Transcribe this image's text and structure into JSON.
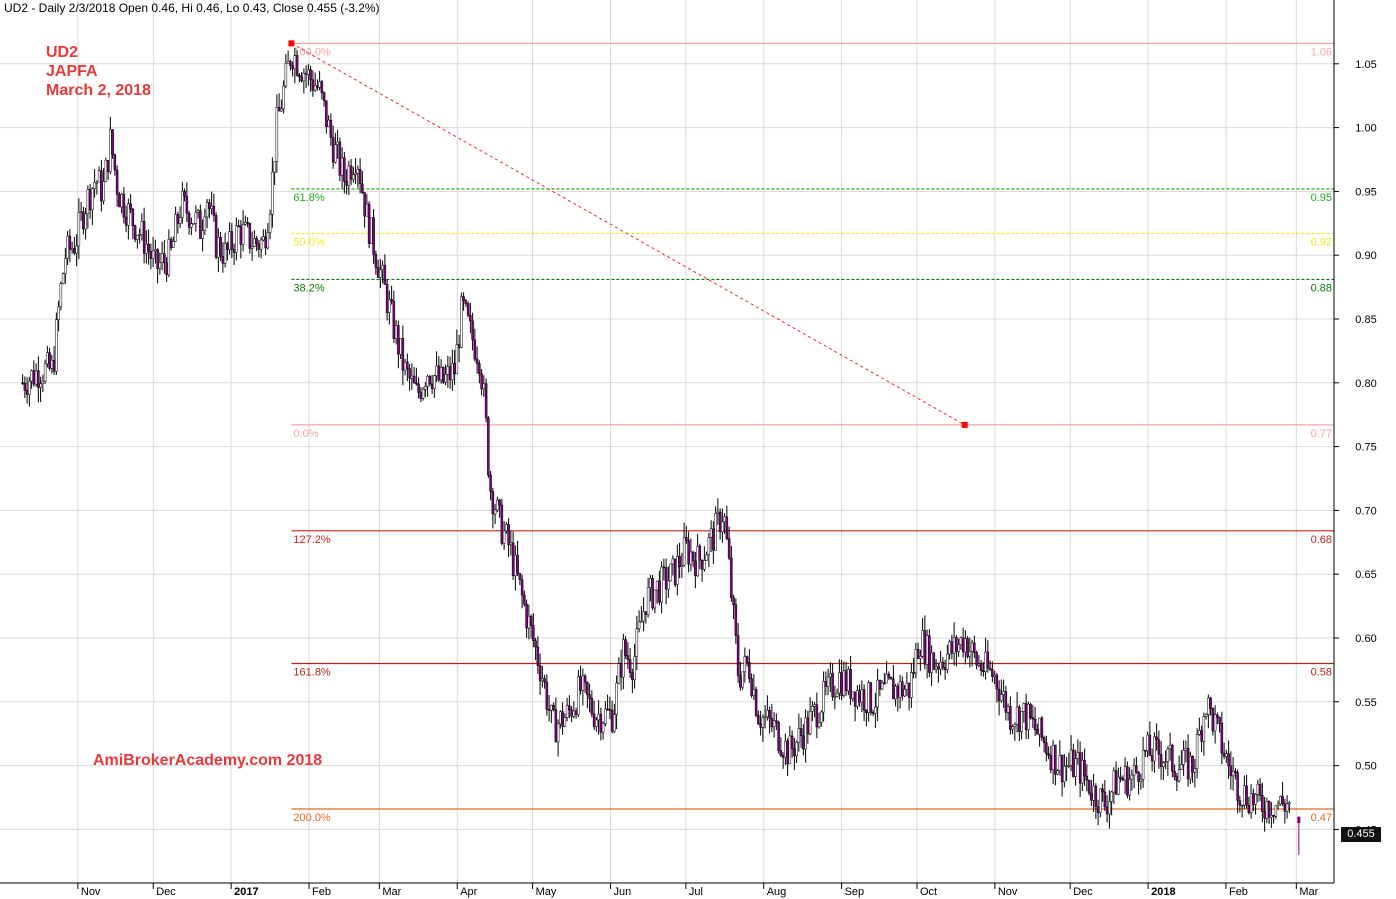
{
  "header": {
    "title": "UD2 - Daily 2/3/2018 Open 0.46, Hi 0.46, Lo 0.43, Close 0.455 (-3.2%)"
  },
  "annotations": {
    "ticker": "UD2",
    "company": "JAPFA",
    "date": "March 2, 2018",
    "brand": "AmiBrokerAcademy.com 2018"
  },
  "last_price_label": "0.455",
  "chart_data": {
    "type": "candlestick",
    "ylim": [
      0.408,
      1.1
    ],
    "y_ticks": [
      0.45,
      0.5,
      0.55,
      0.6,
      0.65,
      0.7,
      0.75,
      0.8,
      0.85,
      0.9,
      0.95,
      1.0,
      1.05
    ],
    "y_tick_labels": [
      "0.45",
      "0.50",
      "0.55",
      "0.60",
      "0.65",
      "0.70",
      "0.75",
      "0.80",
      "0.85",
      "0.90",
      "0.95",
      "1.00",
      "1.05"
    ],
    "x_axis_labels": [
      {
        "label": "Nov",
        "date": "2016-11-01"
      },
      {
        "label": "Dec",
        "date": "2016-12-01"
      },
      {
        "label": "2017",
        "date": "2017-01-01",
        "bold": true
      },
      {
        "label": "Feb",
        "date": "2017-02-01"
      },
      {
        "label": "Mar",
        "date": "2017-03-01"
      },
      {
        "label": "Apr",
        "date": "2017-04-01"
      },
      {
        "label": "May",
        "date": "2017-05-01"
      },
      {
        "label": "Jun",
        "date": "2017-06-01"
      },
      {
        "label": "Jul",
        "date": "2017-07-01"
      },
      {
        "label": "Aug",
        "date": "2017-08-01"
      },
      {
        "label": "Sep",
        "date": "2017-09-01"
      },
      {
        "label": "Oct",
        "date": "2017-10-01"
      },
      {
        "label": "Nov",
        "date": "2017-11-01"
      },
      {
        "label": "Dec",
        "date": "2017-12-01"
      },
      {
        "label": "2018",
        "date": "2018-01-01",
        "bold": true
      },
      {
        "label": "Feb",
        "date": "2018-02-01"
      },
      {
        "label": "Mar",
        "date": "2018-03-01"
      }
    ],
    "fibonacci": {
      "levels": [
        {
          "pct": "100.0%",
          "value": 1.066,
          "right": "1.06",
          "color": "#f4a6a6"
        },
        {
          "pct": "61.8%",
          "value": 0.952,
          "right": "0.95",
          "color": "#1faa1f",
          "dashed": true
        },
        {
          "pct": "50.0%",
          "value": 0.917,
          "right": "0.92",
          "color": "#eeee22",
          "dashed": true
        },
        {
          "pct": "38.2%",
          "value": 0.881,
          "right": "0.88",
          "color": "#0a7a0a",
          "dashed": true
        },
        {
          "pct": "0.0%",
          "value": 0.767,
          "right": "0.77",
          "color": "#f4a6a6"
        },
        {
          "pct": "127.2%",
          "value": 0.684,
          "right": "0.68",
          "color": "#cc2222"
        },
        {
          "pct": "161.8%",
          "value": 0.58,
          "right": "0.58",
          "color": "#a82a1a"
        },
        {
          "pct": "200.0%",
          "value": 0.466,
          "right": "0.47",
          "color": "#e06a20"
        }
      ],
      "trendline": {
        "from": {
          "date": "2017-01-25",
          "price": 1.066
        },
        "to": {
          "date": "2017-10-20",
          "price": 0.767
        },
        "color": "#e03030"
      }
    },
    "series_path": [
      {
        "date": "2016-10-10",
        "price": 0.8
      },
      {
        "date": "2016-10-17",
        "price": 0.81
      },
      {
        "date": "2016-10-22",
        "price": 0.81
      },
      {
        "date": "2016-10-25",
        "price": 0.87
      },
      {
        "date": "2016-10-27",
        "price": 0.9
      },
      {
        "date": "2016-10-31",
        "price": 0.91
      },
      {
        "date": "2016-11-04",
        "price": 0.94
      },
      {
        "date": "2016-11-08",
        "price": 0.96
      },
      {
        "date": "2016-11-11",
        "price": 0.95
      },
      {
        "date": "2016-11-14",
        "price": 0.99
      },
      {
        "date": "2016-11-17",
        "price": 0.95
      },
      {
        "date": "2016-11-22",
        "price": 0.93
      },
      {
        "date": "2016-11-28",
        "price": 0.91
      },
      {
        "date": "2016-12-02",
        "price": 0.89
      },
      {
        "date": "2016-12-08",
        "price": 0.9
      },
      {
        "date": "2016-12-12",
        "price": 0.94
      },
      {
        "date": "2016-12-17",
        "price": 0.93
      },
      {
        "date": "2016-12-20",
        "price": 0.92
      },
      {
        "date": "2016-12-22",
        "price": 0.95
      },
      {
        "date": "2016-12-26",
        "price": 0.91
      },
      {
        "date": "2016-12-30",
        "price": 0.9
      },
      {
        "date": "2017-01-04",
        "price": 0.92
      },
      {
        "date": "2017-01-10",
        "price": 0.91
      },
      {
        "date": "2017-01-14",
        "price": 0.91
      },
      {
        "date": "2017-01-17",
        "price": 0.95
      },
      {
        "date": "2017-01-19",
        "price": 1.0
      },
      {
        "date": "2017-01-22",
        "price": 1.03
      },
      {
        "date": "2017-01-25",
        "price": 1.06
      },
      {
        "date": "2017-01-28",
        "price": 1.05
      },
      {
        "date": "2017-02-01",
        "price": 1.04
      },
      {
        "date": "2017-02-05",
        "price": 1.03
      },
      {
        "date": "2017-02-10",
        "price": 0.99
      },
      {
        "date": "2017-02-15",
        "price": 0.96
      },
      {
        "date": "2017-02-20",
        "price": 0.98
      },
      {
        "date": "2017-02-24",
        "price": 0.93
      },
      {
        "date": "2017-03-01",
        "price": 0.89
      },
      {
        "date": "2017-03-06",
        "price": 0.85
      },
      {
        "date": "2017-03-11",
        "price": 0.81
      },
      {
        "date": "2017-03-16",
        "price": 0.79
      },
      {
        "date": "2017-03-20",
        "price": 0.81
      },
      {
        "date": "2017-03-26",
        "price": 0.8
      },
      {
        "date": "2017-03-31",
        "price": 0.81
      },
      {
        "date": "2017-04-03",
        "price": 0.86
      },
      {
        "date": "2017-04-06",
        "price": 0.84
      },
      {
        "date": "2017-04-10",
        "price": 0.82
      },
      {
        "date": "2017-04-12",
        "price": 0.78
      },
      {
        "date": "2017-04-14",
        "price": 0.72
      },
      {
        "date": "2017-04-18",
        "price": 0.69
      },
      {
        "date": "2017-04-22",
        "price": 0.67
      },
      {
        "date": "2017-04-27",
        "price": 0.63
      },
      {
        "date": "2017-05-01",
        "price": 0.6
      },
      {
        "date": "2017-05-05",
        "price": 0.57
      },
      {
        "date": "2017-05-09",
        "price": 0.53
      },
      {
        "date": "2017-05-15",
        "price": 0.54
      },
      {
        "date": "2017-05-20",
        "price": 0.56
      },
      {
        "date": "2017-05-26",
        "price": 0.54
      },
      {
        "date": "2017-06-02",
        "price": 0.54
      },
      {
        "date": "2017-06-06",
        "price": 0.59
      },
      {
        "date": "2017-06-10",
        "price": 0.58
      },
      {
        "date": "2017-06-15",
        "price": 0.63
      },
      {
        "date": "2017-06-20",
        "price": 0.64
      },
      {
        "date": "2017-06-26",
        "price": 0.65
      },
      {
        "date": "2017-07-01",
        "price": 0.67
      },
      {
        "date": "2017-07-06",
        "price": 0.66
      },
      {
        "date": "2017-07-12",
        "price": 0.68
      },
      {
        "date": "2017-07-16",
        "price": 0.7
      },
      {
        "date": "2017-07-18",
        "price": 0.66
      },
      {
        "date": "2017-07-22",
        "price": 0.57
      },
      {
        "date": "2017-07-26",
        "price": 0.58
      },
      {
        "date": "2017-07-30",
        "price": 0.54
      },
      {
        "date": "2017-08-05",
        "price": 0.53
      },
      {
        "date": "2017-08-11",
        "price": 0.51
      },
      {
        "date": "2017-08-18",
        "price": 0.53
      },
      {
        "date": "2017-08-24",
        "price": 0.55
      },
      {
        "date": "2017-08-31",
        "price": 0.57
      },
      {
        "date": "2017-09-06",
        "price": 0.56
      },
      {
        "date": "2017-09-13",
        "price": 0.55
      },
      {
        "date": "2017-09-20",
        "price": 0.56
      },
      {
        "date": "2017-09-28",
        "price": 0.56
      },
      {
        "date": "2017-10-02",
        "price": 0.6
      },
      {
        "date": "2017-10-08",
        "price": 0.58
      },
      {
        "date": "2017-10-15",
        "price": 0.59
      },
      {
        "date": "2017-10-20",
        "price": 0.6
      },
      {
        "date": "2017-10-25",
        "price": 0.58
      },
      {
        "date": "2017-11-01",
        "price": 0.57
      },
      {
        "date": "2017-11-07",
        "price": 0.54
      },
      {
        "date": "2017-11-13",
        "price": 0.54
      },
      {
        "date": "2017-11-20",
        "price": 0.52
      },
      {
        "date": "2017-11-27",
        "price": 0.5
      },
      {
        "date": "2017-12-04",
        "price": 0.5
      },
      {
        "date": "2017-12-10",
        "price": 0.48
      },
      {
        "date": "2017-12-15",
        "price": 0.47
      },
      {
        "date": "2017-12-20",
        "price": 0.49
      },
      {
        "date": "2017-12-26",
        "price": 0.49
      },
      {
        "date": "2017-12-31",
        "price": 0.51
      },
      {
        "date": "2018-01-06",
        "price": 0.51
      },
      {
        "date": "2018-01-12",
        "price": 0.5
      },
      {
        "date": "2018-01-19",
        "price": 0.5
      },
      {
        "date": "2018-01-24",
        "price": 0.55
      },
      {
        "date": "2018-01-28",
        "price": 0.53
      },
      {
        "date": "2018-02-02",
        "price": 0.5
      },
      {
        "date": "2018-02-07",
        "price": 0.48
      },
      {
        "date": "2018-02-15",
        "price": 0.47
      },
      {
        "date": "2018-02-22",
        "price": 0.47
      },
      {
        "date": "2018-02-27",
        "price": 0.47
      },
      {
        "date": "2018-03-02",
        "price": 0.455
      }
    ],
    "last_bar": {
      "date": "2018-03-02",
      "open": 0.46,
      "high": 0.46,
      "low": 0.43,
      "close": 0.455
    }
  }
}
